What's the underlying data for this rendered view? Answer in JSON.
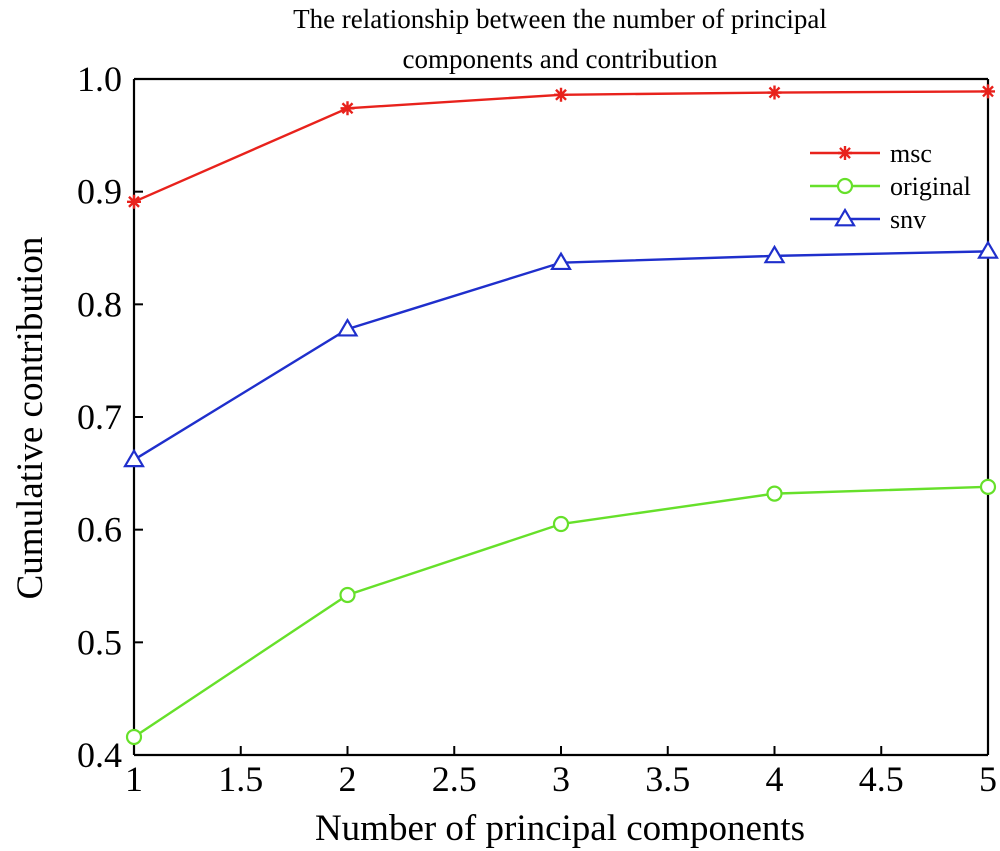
{
  "chart_data": {
    "type": "line",
    "title_lines": [
      "The relationship between the number of principal",
      "components and contribution"
    ],
    "xlabel": "Number of principal components",
    "ylabel": "Cumulative contribution",
    "xlim": [
      1,
      5
    ],
    "ylim": [
      0.4,
      1.0
    ],
    "xticks": [
      1,
      1.5,
      2,
      2.5,
      3,
      3.5,
      4,
      4.5,
      5
    ],
    "xtick_labels": [
      "1",
      "1.5",
      "2",
      "2.5",
      "3",
      "3.5",
      "4",
      "4.5",
      "5"
    ],
    "yticks": [
      0.4,
      0.5,
      0.6,
      0.7,
      0.8,
      0.9,
      1.0
    ],
    "ytick_labels": [
      "0.4",
      "0.5",
      "0.6",
      "0.7",
      "0.8",
      "0.9",
      "1.0"
    ],
    "grid": false,
    "legend_position": "top-right",
    "x": [
      1,
      2,
      3,
      4,
      5
    ],
    "series": [
      {
        "name": "msc",
        "color": "#e8221c",
        "marker": "asterisk",
        "values": [
          0.891,
          0.974,
          0.986,
          0.988,
          0.989
        ]
      },
      {
        "name": "original",
        "color": "#66e02a",
        "marker": "circle",
        "values": [
          0.416,
          0.542,
          0.605,
          0.632,
          0.638
        ]
      },
      {
        "name": "snv",
        "color": "#1f2fcc",
        "marker": "triangle",
        "values": [
          0.662,
          0.778,
          0.837,
          0.843,
          0.847
        ]
      }
    ]
  }
}
